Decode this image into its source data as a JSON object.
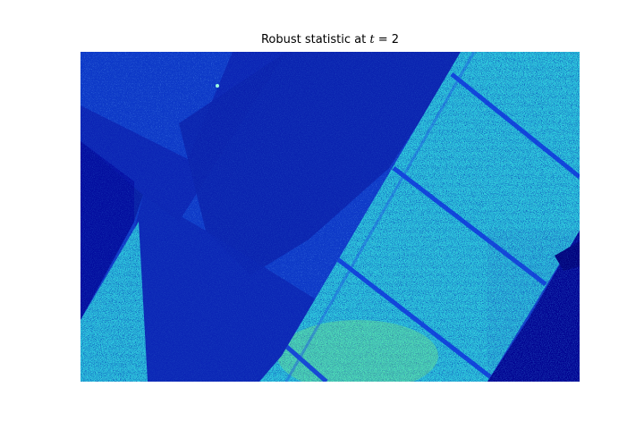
{
  "figure": {
    "title_prefix": "Robust statistic at ",
    "title_var": "t",
    "title_eq": " = ",
    "title_value": "2"
  },
  "image": {
    "description_colormap": "jet",
    "colors": {
      "background_dark": "#00008f",
      "shadow_blue": "#0a1fb0",
      "mid_blue": "#0b3fd8",
      "bright_cyan": "#2ee6d8",
      "green_highlight": "#7dff7a",
      "deep_navy": "#00007a"
    }
  }
}
